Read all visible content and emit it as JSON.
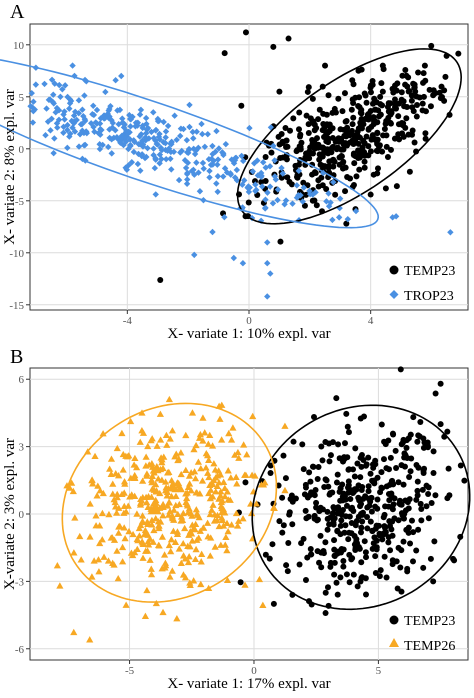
{
  "figure": {
    "panels": [
      {
        "letter": "A",
        "xlabel": "X- variate 1: 10% expl. var",
        "ylabel": "X- variate 2: 8% expl. var",
        "legend_position": "bottom-right",
        "grid": true
      },
      {
        "letter": "B",
        "xlabel": "X- variate 1: 17% expl. var",
        "ylabel": "X-variate 2: 3% expl. var",
        "legend_position": "bottom-right",
        "grid": true
      }
    ]
  },
  "chart_data": [
    {
      "type": "scatter",
      "title": "",
      "panel_label": "A",
      "xlabel": "X- variate 1: 10% expl. var",
      "ylabel": "X- variate 2: 8% expl. var",
      "xlim": [
        -7.2,
        7.2
      ],
      "ylim": [
        -15.5,
        12
      ],
      "xticks": [
        -4,
        0,
        4
      ],
      "yticks": [
        -15,
        -10,
        -5,
        0,
        5,
        10
      ],
      "legend_position": "bottom-right",
      "series": [
        {
          "name": "TEMP23",
          "color": "#000000",
          "marker": "circle",
          "n_points": 450,
          "center": [
            3.2,
            0.5
          ],
          "ellipse": {
            "center": [
              3.3,
              1.2
            ],
            "semi_axes": [
              2.6,
              8.8
            ],
            "tilt_deg": 18
          },
          "points": [
            [
              3.2,
              0.5
            ],
            [
              2.1,
              4.8
            ],
            [
              4.5,
              -3.8
            ],
            [
              5.8,
              1.5
            ],
            [
              1.2,
              2.0
            ],
            [
              3.6,
              7.5
            ],
            [
              2.4,
              -6.0
            ],
            [
              4.0,
              -4.4
            ],
            [
              0.8,
              9.8
            ],
            [
              1.3,
              10.6
            ],
            [
              -0.1,
              11.2
            ],
            [
              -0.8,
              9.2
            ],
            [
              1.0,
              5.5
            ],
            [
              2.5,
              8.0
            ],
            [
              4.4,
              8.0
            ],
            [
              4.4,
              5.5
            ],
            [
              4.8,
              4.0
            ],
            [
              3.2,
              -7.2
            ],
            [
              3.5,
              -5.8
            ]
          ]
        },
        {
          "name": "TROP23",
          "color": "#4a90e2",
          "marker": "diamond",
          "n_points": 450,
          "center": [
            -3.4,
            0.8
          ],
          "ellipse": {
            "center": [
              -3.4,
              0.8
            ],
            "semi_axes": [
              2.8,
              11.0
            ],
            "tilt_deg": -42
          },
          "points": [
            [
              -3.4,
              0.8
            ],
            [
              -6.2,
              5.0
            ],
            [
              -5.8,
              8.0
            ],
            [
              -1.2,
              -8.0
            ],
            [
              -0.5,
              -10.5
            ],
            [
              -0.2,
              -11.0
            ],
            [
              0.6,
              -11.0
            ],
            [
              0.6,
              -9.0
            ],
            [
              0.7,
              -12.0
            ],
            [
              0.6,
              -14.2
            ],
            [
              -6.4,
              1.0
            ],
            [
              -1.8,
              -10.2
            ],
            [
              -4.2,
              7.0
            ]
          ]
        }
      ]
    },
    {
      "type": "scatter",
      "title": "",
      "panel_label": "B",
      "xlabel": "X- variate 1: 17% expl. var",
      "ylabel": "X-variate 2: 3% expl. var",
      "xlim": [
        -9,
        8.6
      ],
      "ylim": [
        -6.5,
        6.5
      ],
      "xticks": [
        -5,
        0,
        5
      ],
      "yticks": [
        -6,
        -3,
        0,
        3,
        6
      ],
      "legend_position": "bottom-right",
      "series": [
        {
          "name": "TEMP23",
          "color": "#000000",
          "marker": "circle",
          "n_points": 450,
          "center": [
            4.3,
            0.0
          ],
          "ellipse": {
            "center": [
              4.3,
              0.3
            ],
            "semi_axes": [
              4.2,
              4.7
            ],
            "tilt_deg": 35
          },
          "points": [
            [
              4.3,
              0.0
            ],
            [
              7.5,
              5.8
            ],
            [
              7.5,
              4.0
            ],
            [
              8.0,
              -2.0
            ],
            [
              0.8,
              -4.0
            ],
            [
              1.2,
              -0.5
            ],
            [
              2.0,
              2.0
            ],
            [
              5.5,
              2.5
            ],
            [
              6.6,
              3.5
            ],
            [
              6.8,
              -2.4
            ],
            [
              7.2,
              -3.0
            ]
          ]
        },
        {
          "name": "TEMP26",
          "color": "#f7a823",
          "marker": "triangle",
          "n_points": 450,
          "center": [
            -3.4,
            0.5
          ],
          "ellipse": {
            "center": [
              -3.4,
              0.5
            ],
            "semi_axes": [
              4.0,
              4.7
            ],
            "tilt_deg": 40
          },
          "points": [
            [
              -3.4,
              0.5
            ],
            [
              -6.6,
              -5.6
            ],
            [
              -7.0,
              -1.0
            ],
            [
              -7.9,
              -2.3
            ],
            [
              -7.8,
              -3.2
            ],
            [
              -0.9,
              3.3
            ],
            [
              -1.4,
              4.8
            ],
            [
              -3.4,
              5.1
            ],
            [
              -4.5,
              4.5
            ],
            [
              0.3,
              1.3
            ],
            [
              -5.8,
              2.0
            ],
            [
              -1.3,
              3.3
            ]
          ]
        }
      ]
    }
  ]
}
